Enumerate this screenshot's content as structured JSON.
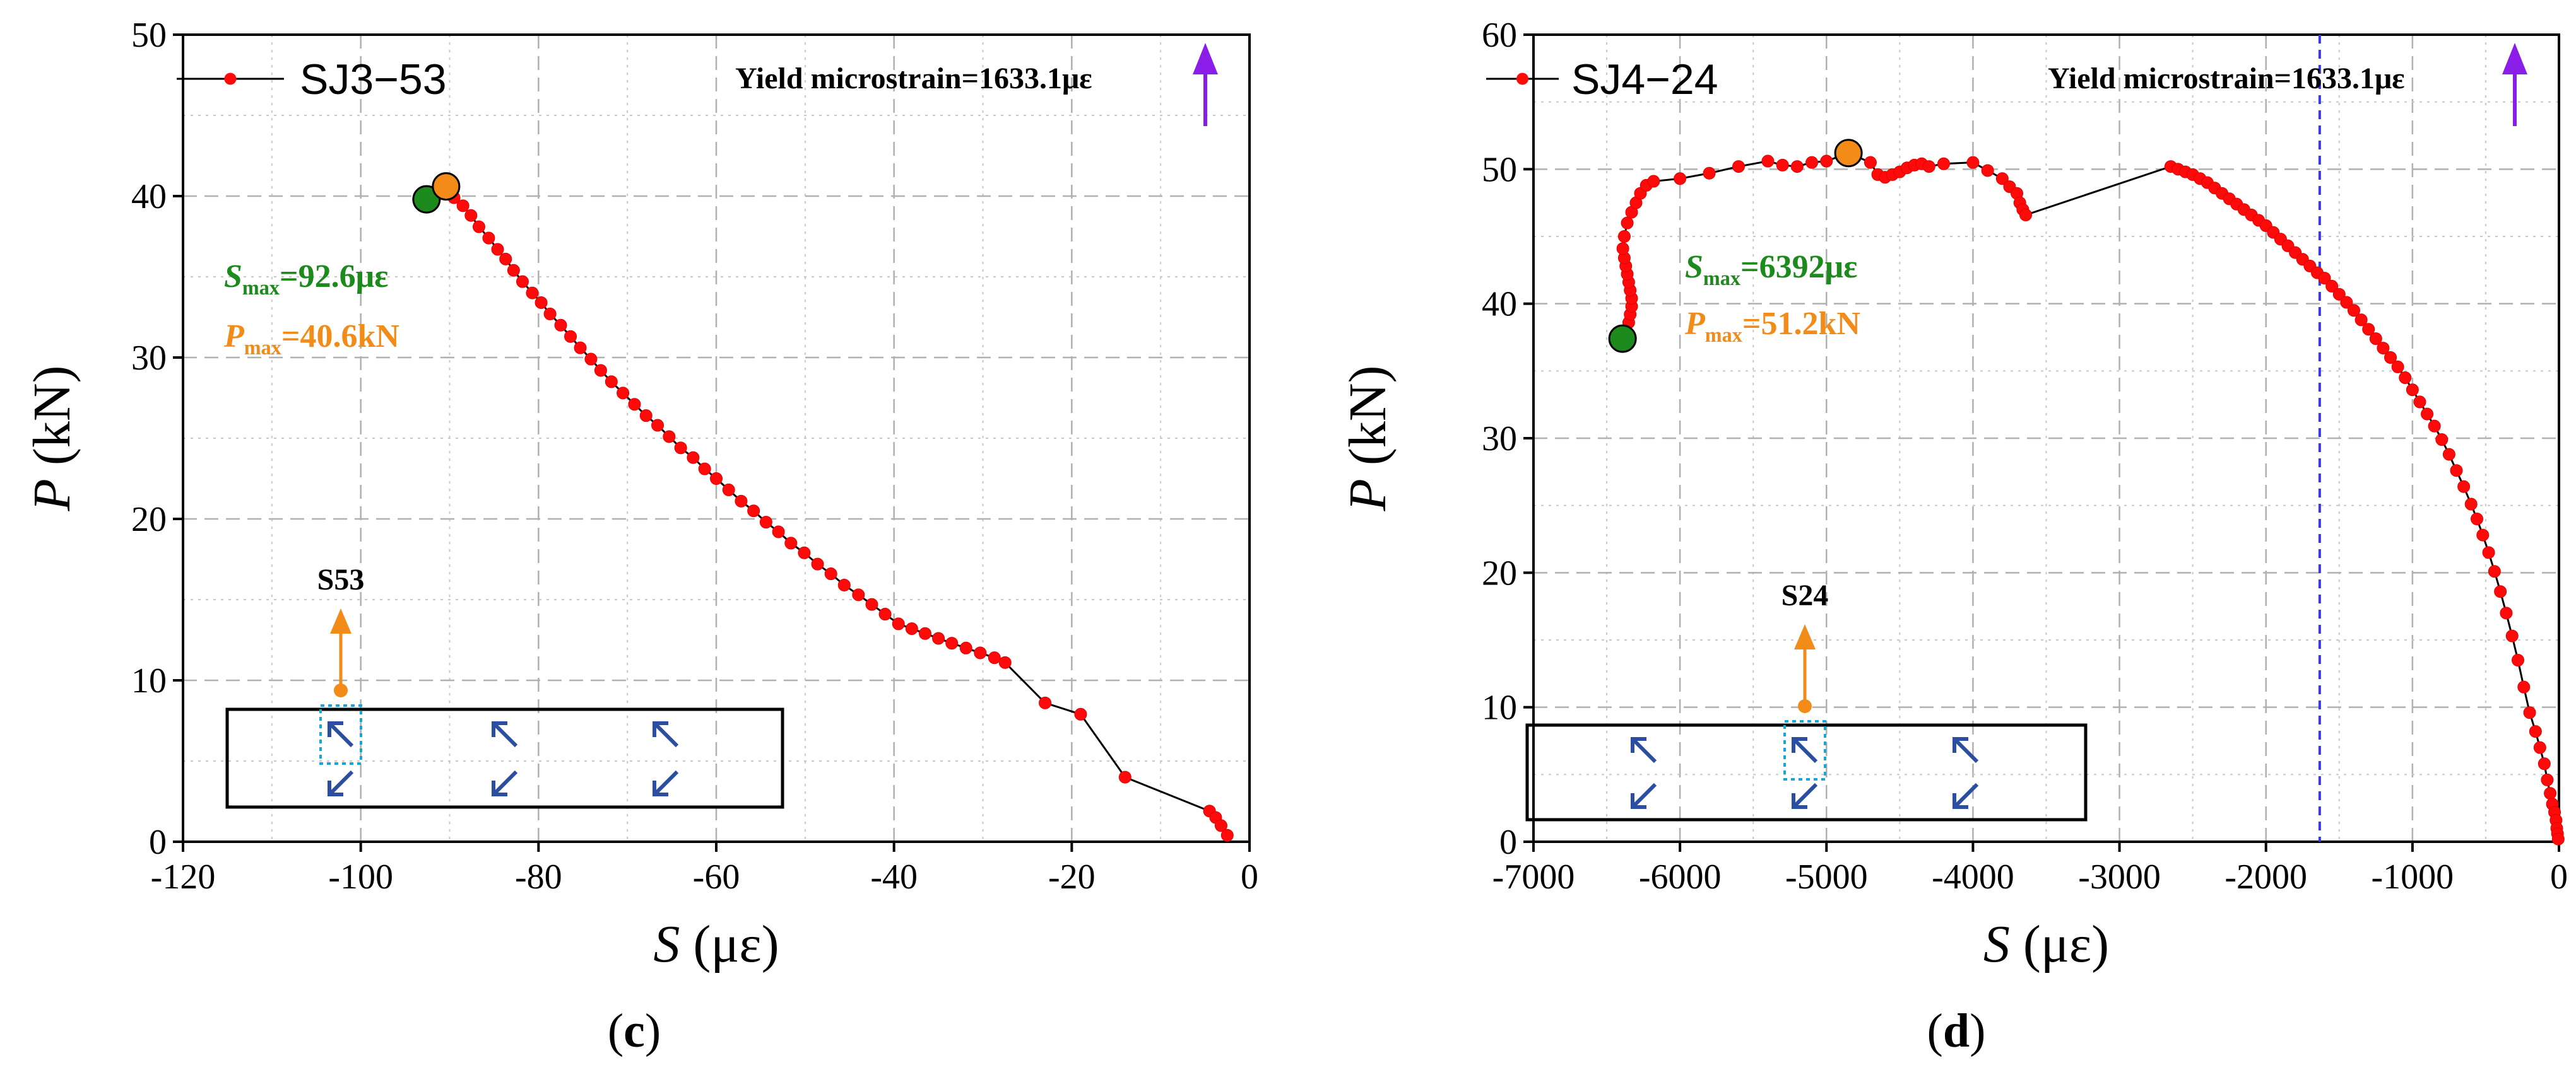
{
  "chart_data": [
    {
      "type": "scatter",
      "panel_label": "c",
      "legend": "SJ3−53",
      "xlabel": {
        "var": "S",
        "unit": "(με)"
      },
      "ylabel": {
        "var": "P",
        "unit": "(kN)"
      },
      "xlim": [
        -120,
        0
      ],
      "ylim": [
        0,
        50
      ],
      "xticks": [
        -120,
        -100,
        -80,
        -60,
        -40,
        -20,
        0
      ],
      "yticks": [
        0,
        10,
        20,
        30,
        40,
        50
      ],
      "grid": true,
      "yield_note": "Yield microstrain=1633.1με",
      "yield_line_x": null,
      "s_max": {
        "prefix": "S",
        "sub": "max",
        "value": "=92.6με",
        "color": "#1c8a1c"
      },
      "p_max": {
        "prefix": "P",
        "sub": "max",
        "value": "=40.6kN",
        "color": "#f28b17"
      },
      "smax_point": {
        "x": -92.6,
        "y": 39.8
      },
      "pmax_point": {
        "x": -90.4,
        "y": 40.6
      },
      "sensor_label": "S53",
      "sensor_column": 0,
      "series": [
        {
          "name": "SJ3−53",
          "x": [
            -90.4,
            -89.5,
            -88.5,
            -87.6,
            -86.7,
            -85.6,
            -84.6,
            -83.7,
            -82.8,
            -81.8,
            -80.7,
            -79.7,
            -78.7,
            -77.5,
            -76.4,
            -75.3,
            -74.1,
            -73.0,
            -71.8,
            -70.5,
            -69.2,
            -67.9,
            -66.6,
            -65.3,
            -64.0,
            -62.6,
            -61.3,
            -60.0,
            -58.6,
            -57.2,
            -55.8,
            -54.4,
            -53.0,
            -51.6,
            -50.1,
            -48.6,
            -47.1,
            -45.6,
            -44.0,
            -42.5,
            -41.0,
            -39.5,
            -38.0,
            -36.5,
            -35.0,
            -33.5,
            -31.9,
            -30.3,
            -28.7,
            -27.5,
            -23.0,
            -19.0,
            -14.0,
            -4.5,
            -3.8,
            -3.2,
            -2.5
          ],
          "y": [
            40.6,
            39.9,
            39.4,
            38.8,
            38.1,
            37.4,
            36.7,
            36.1,
            35.4,
            34.7,
            34.0,
            33.4,
            32.7,
            32.0,
            31.3,
            30.6,
            29.9,
            29.2,
            28.5,
            27.8,
            27.1,
            26.4,
            25.8,
            25.1,
            24.4,
            23.8,
            23.1,
            22.5,
            21.8,
            21.1,
            20.5,
            19.8,
            19.2,
            18.5,
            17.9,
            17.2,
            16.6,
            15.9,
            15.3,
            14.7,
            14.1,
            13.5,
            13.2,
            12.9,
            12.6,
            12.3,
            12.0,
            11.7,
            11.4,
            11.1,
            8.6,
            7.9,
            4.0,
            1.9,
            1.5,
            1.0,
            0.4
          ]
        }
      ]
    },
    {
      "type": "scatter",
      "panel_label": "d",
      "legend": "SJ4−24",
      "xlabel": {
        "var": "S",
        "unit": "(με)"
      },
      "ylabel": {
        "var": "P",
        "unit": "(kN)"
      },
      "xlim": [
        -7000,
        0
      ],
      "ylim": [
        0,
        60
      ],
      "xticks": [
        -7000,
        -6000,
        -5000,
        -4000,
        -3000,
        -2000,
        -1000,
        0
      ],
      "yticks": [
        0,
        10,
        20,
        30,
        40,
        50,
        60
      ],
      "grid": true,
      "yield_note": "Yield microstrain=1633.1με",
      "yield_line_x": -1633.1,
      "s_max": {
        "prefix": "S",
        "sub": "max",
        "value": "=6392με",
        "color": "#1c8a1c"
      },
      "p_max": {
        "prefix": "P",
        "sub": "max",
        "value": "=51.2kN",
        "color": "#f28b17"
      },
      "smax_point": {
        "x": -6392,
        "y": 37.4
      },
      "pmax_point": {
        "x": -4850,
        "y": 51.2
      },
      "sensor_label": "S24",
      "sensor_column": 1,
      "series": [
        {
          "name": "SJ4−24",
          "x": [
            -6392,
            -6370,
            -6350,
            -6340,
            -6330,
            -6330,
            -6340,
            -6350,
            -6360,
            -6370,
            -6380,
            -6390,
            -6380,
            -6360,
            -6330,
            -6300,
            -6270,
            -6230,
            -6180,
            -6000,
            -5800,
            -5600,
            -5400,
            -5300,
            -5200,
            -5100,
            -5000,
            -4850,
            -4700,
            -4650,
            -4600,
            -4550,
            -4500,
            -4450,
            -4400,
            -4350,
            -4300,
            -4200,
            -4000,
            -3900,
            -3800,
            -3750,
            -3700,
            -3680,
            -3660,
            -3640,
            -2650,
            -2600,
            -2550,
            -2500,
            -2450,
            -2400,
            -2350,
            -2300,
            -2250,
            -2200,
            -2150,
            -2100,
            -2050,
            -2000,
            -1950,
            -1900,
            -1850,
            -1800,
            -1750,
            -1700,
            -1650,
            -1600,
            -1550,
            -1500,
            -1450,
            -1400,
            -1350,
            -1300,
            -1250,
            -1200,
            -1150,
            -1100,
            -1050,
            -1000,
            -950,
            -900,
            -850,
            -800,
            -750,
            -700,
            -650,
            -600,
            -560,
            -520,
            -480,
            -440,
            -400,
            -360,
            -320,
            -280,
            -240,
            -200,
            -160,
            -130,
            -100,
            -80,
            -60,
            -45,
            -30,
            -20,
            -15,
            -10,
            -5
          ],
          "y": [
            37.4,
            38.0,
            38.6,
            39.2,
            39.8,
            40.4,
            41.0,
            41.6,
            42.2,
            42.8,
            43.4,
            44.1,
            45.0,
            46.0,
            46.8,
            47.5,
            48.2,
            48.8,
            49.1,
            49.3,
            49.7,
            50.2,
            50.6,
            50.3,
            50.2,
            50.5,
            50.6,
            51.2,
            50.5,
            49.6,
            49.4,
            49.6,
            49.8,
            50.1,
            50.3,
            50.4,
            50.2,
            50.4,
            50.5,
            49.9,
            49.3,
            48.7,
            48.2,
            47.5,
            47.0,
            46.6,
            50.2,
            50.0,
            49.8,
            49.6,
            49.3,
            49.0,
            48.6,
            48.2,
            47.8,
            47.4,
            47.0,
            46.6,
            46.2,
            45.8,
            45.3,
            44.8,
            44.3,
            43.8,
            43.3,
            42.8,
            42.3,
            41.9,
            41.3,
            40.7,
            40.1,
            39.5,
            38.8,
            38.1,
            37.4,
            36.7,
            36.0,
            35.3,
            34.5,
            33.6,
            32.7,
            31.8,
            30.9,
            29.9,
            28.8,
            27.6,
            26.4,
            25.1,
            24.0,
            22.8,
            21.5,
            20.1,
            18.6,
            17.0,
            15.3,
            13.5,
            11.5,
            9.6,
            8.2,
            7.0,
            5.8,
            4.6,
            3.6,
            2.8,
            2.2,
            1.6,
            1.0,
            0.6,
            0.2
          ]
        }
      ]
    }
  ]
}
